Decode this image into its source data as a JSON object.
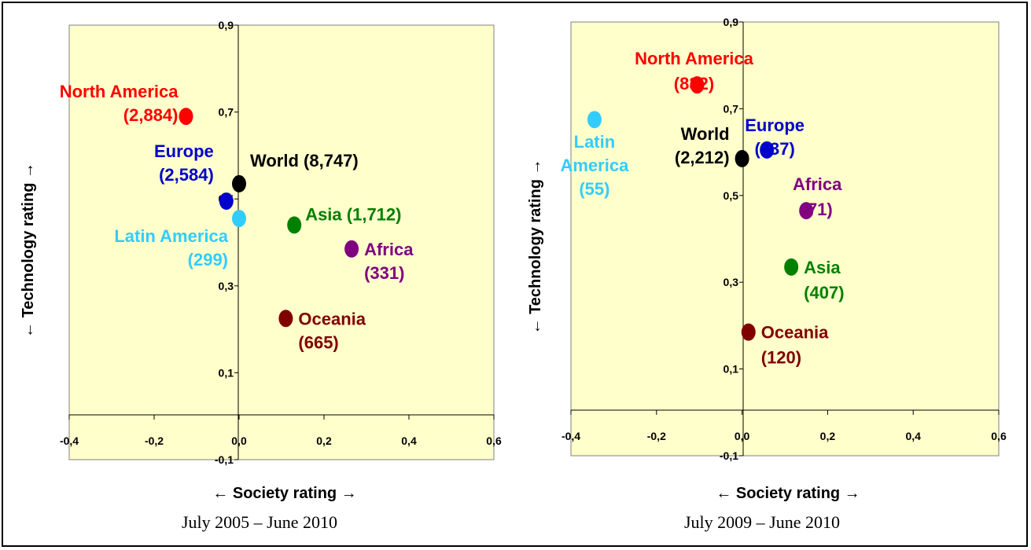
{
  "chart_data": [
    {
      "type": "scatter",
      "xlabel": "← Society rating →",
      "ylabel": "← Technology rating →",
      "caption": "July 2005 – June 2010",
      "xlim": [
        -0.4,
        0.6
      ],
      "ylim": [
        -0.1,
        0.9
      ],
      "x_ticks": [
        "-0,4",
        "-0,2",
        "0,0",
        "0,2",
        "0,4",
        "0,6"
      ],
      "y_ticks": [
        "-0,1",
        "0,1",
        "0,3",
        "0,5",
        "0,7",
        "0,9"
      ],
      "background": "#ffffcc",
      "points": [
        {
          "label": [
            "North America",
            "(2,884)"
          ],
          "x": -0.125,
          "y": 0.69,
          "color": "#ff0000"
        },
        {
          "label": [
            "Europe",
            "(2,584)"
          ],
          "x": -0.03,
          "y": 0.495,
          "color": "#0000cc"
        },
        {
          "label": [
            "World (8,747)"
          ],
          "x": 0.0,
          "y": 0.535,
          "color": "#000000"
        },
        {
          "label": [
            "Latin America",
            "(299)"
          ],
          "x": 0.0,
          "y": 0.455,
          "color": "#33ccff"
        },
        {
          "label": [
            "Asia (1,712)"
          ],
          "x": 0.13,
          "y": 0.44,
          "color": "#008000"
        },
        {
          "label": [
            "Africa",
            "(331)"
          ],
          "x": 0.265,
          "y": 0.385,
          "color": "#800080"
        },
        {
          "label": [
            "Oceania",
            "(665)"
          ],
          "x": 0.11,
          "y": 0.225,
          "color": "#800000"
        }
      ]
    },
    {
      "type": "scatter",
      "xlabel": "← Society rating →",
      "ylabel": "← Technology rating →",
      "caption": "July 2009 – June 2010",
      "xlim": [
        -0.4,
        0.6
      ],
      "ylim": [
        -0.1,
        0.9
      ],
      "x_ticks": [
        "-0,4",
        "-0,2",
        "0,0",
        "0,2",
        "0,4",
        "0,6"
      ],
      "y_ticks": [
        "-0,1",
        "0,1",
        "0,3",
        "0,5",
        "0,7",
        "0,9"
      ],
      "background": "#ffffcc",
      "points": [
        {
          "label": [
            "North America",
            "(832)"
          ],
          "x": -0.105,
          "y": 0.755,
          "color": "#ff0000"
        },
        {
          "label": [
            "Latin",
            "America",
            "(55)"
          ],
          "x": -0.345,
          "y": 0.675,
          "color": "#33ccff"
        },
        {
          "label": [
            "World",
            "(2,212)"
          ],
          "x": 0.0,
          "y": 0.585,
          "color": "#000000"
        },
        {
          "label": [
            "Europe",
            "(637)"
          ],
          "x": 0.058,
          "y": 0.605,
          "color": "#0000cc"
        },
        {
          "label": [
            "Africa",
            "(71)"
          ],
          "x": 0.15,
          "y": 0.465,
          "color": "#800080"
        },
        {
          "label": [
            "Asia",
            "(407)"
          ],
          "x": 0.115,
          "y": 0.335,
          "color": "#008000"
        },
        {
          "label": [
            "Oceania",
            "(120)"
          ],
          "x": 0.015,
          "y": 0.185,
          "color": "#800000"
        }
      ]
    }
  ]
}
